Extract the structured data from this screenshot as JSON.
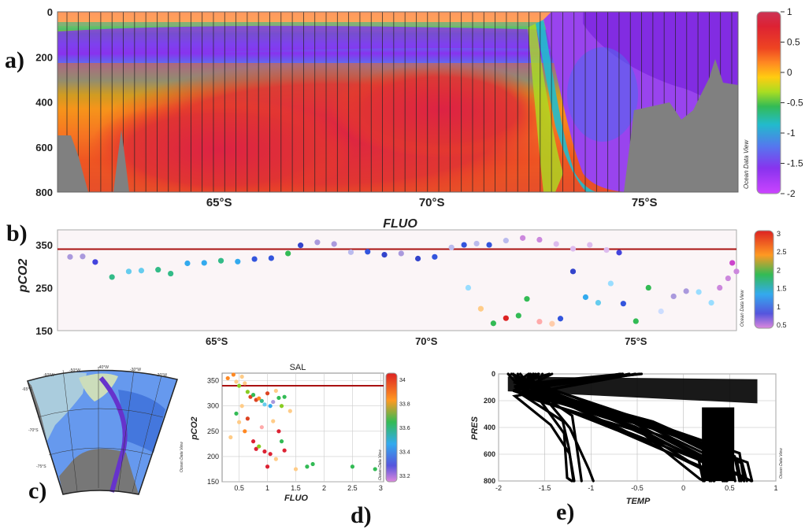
{
  "chart_data": [
    {
      "id": "a",
      "panel_label": "a)",
      "type": "heatmap",
      "x_ticks": [
        {
          "v": 65,
          "label": "65°S"
        },
        {
          "v": 70,
          "label": "70°S"
        },
        {
          "v": 75,
          "label": "75°S"
        }
      ],
      "y_ticks": [
        0,
        200,
        400,
        600,
        800
      ],
      "xlim": [
        61.2,
        77.2
      ],
      "ylim": [
        0,
        800
      ],
      "y_inverted": true,
      "colorbar": {
        "ticks": [
          "1",
          "0.5",
          "0",
          "-0.5",
          "-1",
          "-1.5",
          "-2"
        ],
        "range": [
          -2,
          1
        ],
        "colors": [
          "#cc44ff",
          "#8833ee",
          "#5577ee",
          "#22bbcc",
          "#33bb55",
          "#aadd22",
          "#ffcc11",
          "#ff8822",
          "#ee4422",
          "#dd2233",
          "#cc3355"
        ]
      },
      "watermark": "Ocean Data View",
      "bathymetry_color": "#808080",
      "stations_count": 60,
      "water_masses": [
        {
          "name": "surface",
          "color": "#ee9933"
        },
        {
          "name": "winter water",
          "color": "#8833ee"
        },
        {
          "name": "deep",
          "color": "#dd3333"
        }
      ]
    },
    {
      "id": "b",
      "panel_label": "b)",
      "type": "scatter",
      "title": "FLUO",
      "ylabel": "pCO2",
      "x_ticks": [
        {
          "v": 65,
          "label": "65°S"
        },
        {
          "v": 70,
          "label": "70°S"
        },
        {
          "v": 75,
          "label": "75°S"
        }
      ],
      "y_ticks": [
        150,
        250,
        350
      ],
      "xlim": [
        61.2,
        77.4
      ],
      "ylim": [
        150,
        385
      ],
      "reference_line": {
        "y": 340,
        "color": "#aa1111"
      },
      "colorbar": {
        "ticks": [
          "3",
          "2.5",
          "2",
          "1.5",
          "1",
          "0.5"
        ],
        "range": [
          0.2,
          3
        ]
      },
      "watermark": "Ocean Data View",
      "points": [
        {
          "x": 61.5,
          "y": 322,
          "c": "#aa99dd"
        },
        {
          "x": 61.8,
          "y": 323,
          "c": "#aa99dd"
        },
        {
          "x": 62.1,
          "y": 310,
          "c": "#4444dd"
        },
        {
          "x": 62.5,
          "y": 275,
          "c": "#33bb88"
        },
        {
          "x": 62.9,
          "y": 288,
          "c": "#66ccee"
        },
        {
          "x": 63.2,
          "y": 290,
          "c": "#66ccee"
        },
        {
          "x": 63.6,
          "y": 292,
          "c": "#33bb88"
        },
        {
          "x": 63.9,
          "y": 283,
          "c": "#33bb88"
        },
        {
          "x": 64.3,
          "y": 307,
          "c": "#33aaee"
        },
        {
          "x": 64.7,
          "y": 308,
          "c": "#33aaee"
        },
        {
          "x": 65.1,
          "y": 313,
          "c": "#33bb88"
        },
        {
          "x": 65.5,
          "y": 311,
          "c": "#33aaee"
        },
        {
          "x": 65.9,
          "y": 317,
          "c": "#3355dd"
        },
        {
          "x": 66.3,
          "y": 319,
          "c": "#3355dd"
        },
        {
          "x": 66.7,
          "y": 330,
          "c": "#33bb55"
        },
        {
          "x": 67.0,
          "y": 349,
          "c": "#3344cc"
        },
        {
          "x": 67.4,
          "y": 356,
          "c": "#aa99dd"
        },
        {
          "x": 67.8,
          "y": 352,
          "c": "#aa99dd"
        },
        {
          "x": 68.2,
          "y": 333,
          "c": "#bbbbee"
        },
        {
          "x": 68.6,
          "y": 334,
          "c": "#3355dd"
        },
        {
          "x": 69.0,
          "y": 327,
          "c": "#3344cc"
        },
        {
          "x": 69.4,
          "y": 330,
          "c": "#aa99dd"
        },
        {
          "x": 69.8,
          "y": 318,
          "c": "#3344cc"
        },
        {
          "x": 70.2,
          "y": 322,
          "c": "#3355dd"
        },
        {
          "x": 70.6,
          "y": 344,
          "c": "#bbbbee"
        },
        {
          "x": 70.9,
          "y": 350,
          "c": "#3355dd"
        },
        {
          "x": 71.2,
          "y": 353,
          "c": "#bbbbee"
        },
        {
          "x": 71.5,
          "y": 350,
          "c": "#3355dd"
        },
        {
          "x": 71.9,
          "y": 360,
          "c": "#bbbbee"
        },
        {
          "x": 72.3,
          "y": 366,
          "c": "#cc88dd"
        },
        {
          "x": 72.7,
          "y": 362,
          "c": "#cc88dd"
        },
        {
          "x": 73.1,
          "y": 352,
          "c": "#ddbbee"
        },
        {
          "x": 73.5,
          "y": 341,
          "c": "#ddbbee"
        },
        {
          "x": 73.9,
          "y": 350,
          "c": "#ddbbee"
        },
        {
          "x": 74.3,
          "y": 338,
          "c": "#ddbbee"
        },
        {
          "x": 74.6,
          "y": 332,
          "c": "#4444dd"
        },
        {
          "x": 71.0,
          "y": 250,
          "c": "#99ddff"
        },
        {
          "x": 71.3,
          "y": 201,
          "c": "#ffcc88"
        },
        {
          "x": 71.6,
          "y": 167,
          "c": "#33bb55"
        },
        {
          "x": 71.9,
          "y": 179,
          "c": "#dd2222"
        },
        {
          "x": 72.2,
          "y": 185,
          "c": "#33bb55"
        },
        {
          "x": 72.4,
          "y": 224,
          "c": "#33bb55"
        },
        {
          "x": 72.7,
          "y": 171,
          "c": "#ffaaaa"
        },
        {
          "x": 73.0,
          "y": 166,
          "c": "#ffccaa"
        },
        {
          "x": 73.2,
          "y": 178,
          "c": "#3355dd"
        },
        {
          "x": 73.5,
          "y": 288,
          "c": "#3344cc"
        },
        {
          "x": 73.8,
          "y": 228,
          "c": "#33aaee"
        },
        {
          "x": 74.1,
          "y": 215,
          "c": "#66ccee"
        },
        {
          "x": 74.4,
          "y": 260,
          "c": "#99ddff"
        },
        {
          "x": 74.7,
          "y": 213,
          "c": "#3355dd"
        },
        {
          "x": 75.0,
          "y": 172,
          "c": "#33bb55"
        },
        {
          "x": 75.3,
          "y": 250,
          "c": "#33bb55"
        },
        {
          "x": 75.6,
          "y": 195,
          "c": "#ccddff"
        },
        {
          "x": 75.9,
          "y": 230,
          "c": "#aa99dd"
        },
        {
          "x": 76.2,
          "y": 242,
          "c": "#aa99dd"
        },
        {
          "x": 76.5,
          "y": 240,
          "c": "#99ddff"
        },
        {
          "x": 76.8,
          "y": 215,
          "c": "#99ddff"
        },
        {
          "x": 77.0,
          "y": 250,
          "c": "#cc88dd"
        },
        {
          "x": 77.2,
          "y": 272,
          "c": "#cc88dd"
        },
        {
          "x": 77.3,
          "y": 308,
          "c": "#cc44cc"
        },
        {
          "x": 77.4,
          "y": 288,
          "c": "#cc88dd"
        }
      ]
    },
    {
      "id": "c",
      "panel_label": "c)",
      "type": "map",
      "lon_labels": [
        "-60°W",
        "-50°W",
        "-40°W",
        "-30°W",
        "-20°W"
      ],
      "lat_labels": [
        "-65°S",
        "-70°S",
        "-75°S"
      ],
      "watermark": "Ocean Data View"
    },
    {
      "id": "d",
      "panel_label": "d)",
      "type": "scatter",
      "title": "SAL",
      "xlabel": "FLUO",
      "ylabel": "pCO2",
      "x_ticks": [
        "0.5",
        "1",
        "1.5",
        "2",
        "2.5",
        "3"
      ],
      "x_tick_values": [
        0.5,
        1,
        1.5,
        2,
        2.5,
        3
      ],
      "y_ticks": [
        150,
        200,
        250,
        300,
        350
      ],
      "xlim": [
        0.2,
        3.05
      ],
      "ylim": [
        150,
        365
      ],
      "reference_line": {
        "y": 340,
        "color": "#aa1111"
      },
      "colorbar": {
        "ticks": [
          "34",
          "33.8",
          "33.6",
          "33.4",
          "33.2"
        ],
        "range": [
          33.2,
          34.1
        ]
      },
      "watermark": "Ocean Data View",
      "points": [
        {
          "x": 0.3,
          "y": 355,
          "c": "#ff8822"
        },
        {
          "x": 0.4,
          "y": 362,
          "c": "#ff8822"
        },
        {
          "x": 0.45,
          "y": 348,
          "c": "#ffcc88"
        },
        {
          "x": 0.5,
          "y": 340,
          "c": "#88cc22"
        },
        {
          "x": 0.55,
          "y": 358,
          "c": "#ffcc88"
        },
        {
          "x": 0.6,
          "y": 345,
          "c": "#ffcc88"
        },
        {
          "x": 0.65,
          "y": 328,
          "c": "#88cc22"
        },
        {
          "x": 0.7,
          "y": 318,
          "c": "#dd4422"
        },
        {
          "x": 0.75,
          "y": 322,
          "c": "#33bb55"
        },
        {
          "x": 0.8,
          "y": 312,
          "c": "#dd4422"
        },
        {
          "x": 0.85,
          "y": 315,
          "c": "#ff8822"
        },
        {
          "x": 0.9,
          "y": 310,
          "c": "#33bb88"
        },
        {
          "x": 0.95,
          "y": 303,
          "c": "#66ccee"
        },
        {
          "x": 1.0,
          "y": 325,
          "c": "#dd4422"
        },
        {
          "x": 1.05,
          "y": 300,
          "c": "#33aaee"
        },
        {
          "x": 1.1,
          "y": 308,
          "c": "#aa99dd"
        },
        {
          "x": 1.15,
          "y": 330,
          "c": "#ffcc88"
        },
        {
          "x": 1.2,
          "y": 316,
          "c": "#33bb55"
        },
        {
          "x": 1.25,
          "y": 300,
          "c": "#88cc22"
        },
        {
          "x": 1.3,
          "y": 318,
          "c": "#33bb55"
        },
        {
          "x": 0.45,
          "y": 285,
          "c": "#33bb55"
        },
        {
          "x": 0.5,
          "y": 268,
          "c": "#ffcc88"
        },
        {
          "x": 0.55,
          "y": 300,
          "c": "#ffcc88"
        },
        {
          "x": 0.6,
          "y": 250,
          "c": "#ff8822"
        },
        {
          "x": 0.65,
          "y": 275,
          "c": "#dd4422"
        },
        {
          "x": 0.75,
          "y": 230,
          "c": "#dd2233"
        },
        {
          "x": 0.8,
          "y": 215,
          "c": "#dd2233"
        },
        {
          "x": 0.85,
          "y": 220,
          "c": "#88cc22"
        },
        {
          "x": 0.95,
          "y": 210,
          "c": "#dd2233"
        },
        {
          "x": 1.0,
          "y": 180,
          "c": "#dd2233"
        },
        {
          "x": 1.05,
          "y": 205,
          "c": "#dd2233"
        },
        {
          "x": 1.1,
          "y": 270,
          "c": "#ffcc88"
        },
        {
          "x": 1.2,
          "y": 250,
          "c": "#dd2233"
        },
        {
          "x": 1.25,
          "y": 230,
          "c": "#33bb55"
        },
        {
          "x": 1.3,
          "y": 212,
          "c": "#dd2233"
        },
        {
          "x": 1.4,
          "y": 290,
          "c": "#ffcc88"
        },
        {
          "x": 1.5,
          "y": 175,
          "c": "#ffcc88"
        },
        {
          "x": 1.7,
          "y": 180,
          "c": "#33bb55"
        },
        {
          "x": 1.8,
          "y": 185,
          "c": "#33bb55"
        },
        {
          "x": 2.5,
          "y": 180,
          "c": "#33bb55"
        },
        {
          "x": 2.9,
          "y": 175,
          "c": "#33bb55"
        },
        {
          "x": 0.35,
          "y": 238,
          "c": "#ffcc88"
        },
        {
          "x": 0.9,
          "y": 258,
          "c": "#ffaaaa"
        },
        {
          "x": 1.15,
          "y": 195,
          "c": "#ffcc88"
        }
      ]
    },
    {
      "id": "e",
      "panel_label": "e)",
      "type": "scatter",
      "xlabel": "TEMP",
      "ylabel": "PRES",
      "x_ticks": [
        "-2",
        "-1.5",
        "-1",
        "-0.5",
        "0",
        "0.5",
        "1"
      ],
      "x_tick_values": [
        -2,
        -1.5,
        -1,
        -0.5,
        0,
        0.5,
        1
      ],
      "y_ticks": [
        0,
        200,
        400,
        600,
        800
      ],
      "xlim": [
        -2,
        1
      ],
      "ylim": [
        0,
        800
      ],
      "y_inverted": true,
      "watermark": "Ocean Data View"
    }
  ]
}
